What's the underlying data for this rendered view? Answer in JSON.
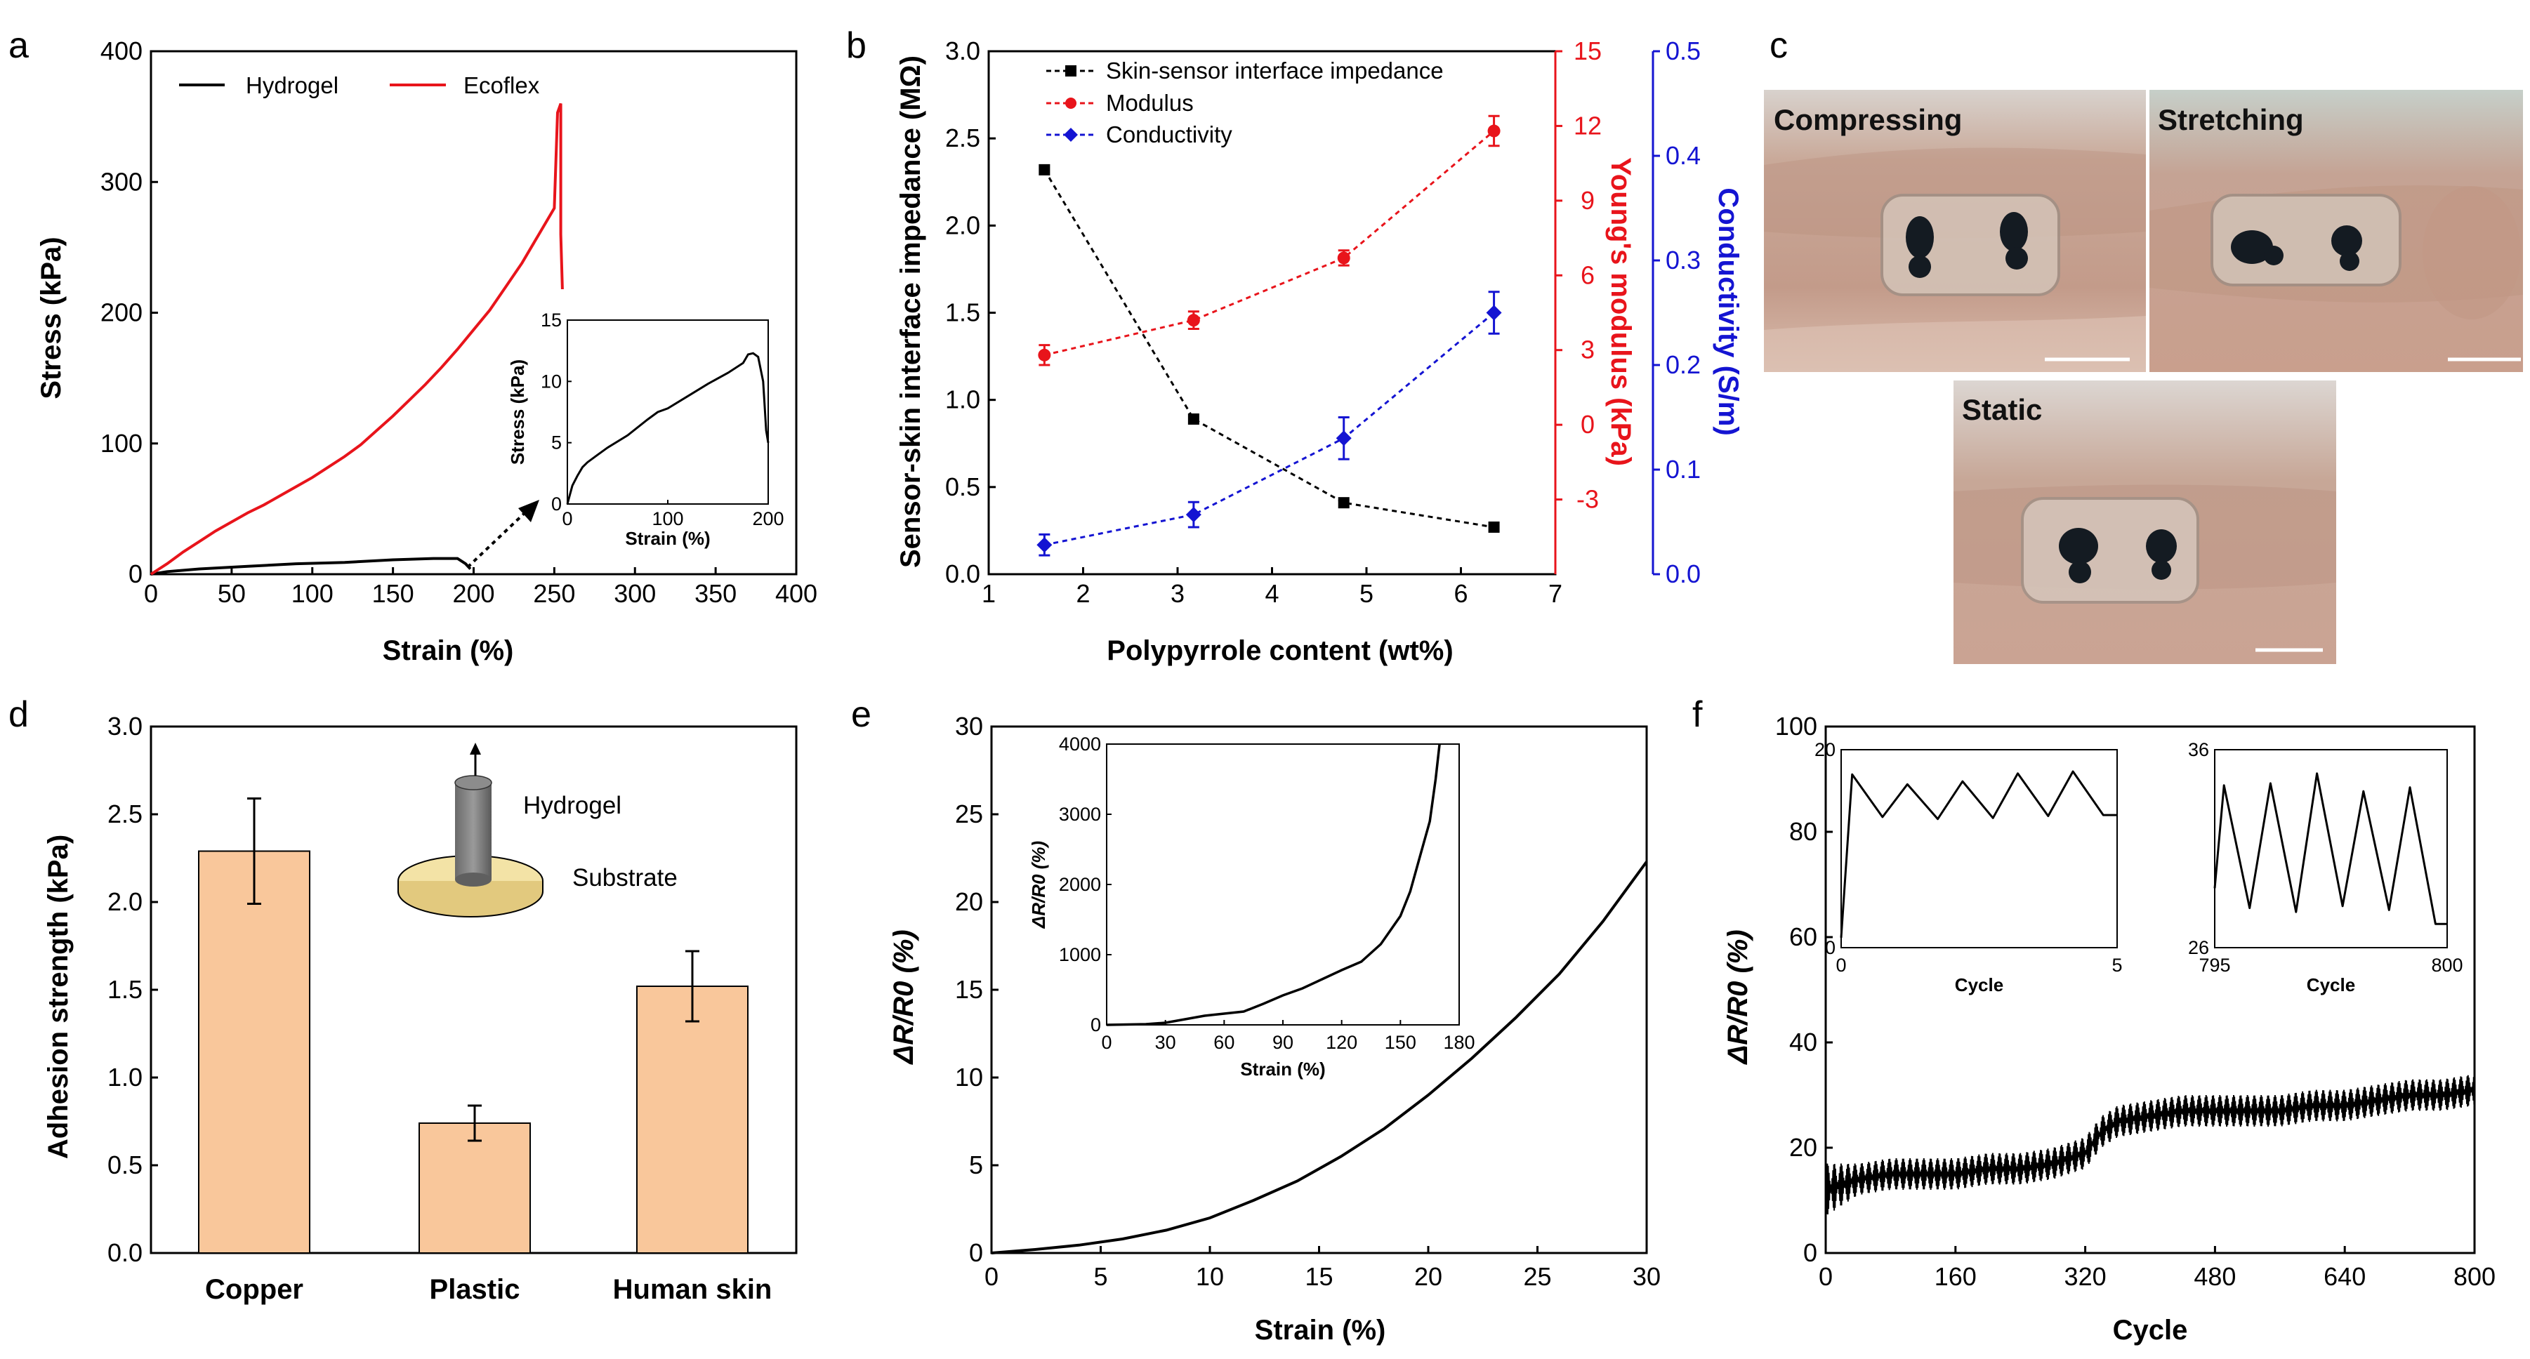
{
  "chart_data": [
    {
      "panel": "a",
      "type": "line",
      "xlabel": "Strain (%)",
      "ylabel": "Stress (kPa)",
      "xlim": [
        0,
        400
      ],
      "ylim": [
        0,
        400
      ],
      "xticks": [
        "0",
        "50",
        "100",
        "150",
        "200",
        "250",
        "300",
        "350",
        "400"
      ],
      "yticks": [
        "0",
        "100",
        "200",
        "300",
        "400"
      ],
      "legend": [
        "Hydrogel",
        "Ecoflex"
      ],
      "series": [
        {
          "name": "Hydrogel",
          "color": "#000000",
          "x": [
            0,
            10,
            30,
            60,
            90,
            120,
            150,
            175,
            190,
            195,
            198
          ],
          "y": [
            0,
            2,
            4,
            6,
            8,
            9,
            11,
            12,
            12,
            8,
            4
          ]
        },
        {
          "name": "Ecoflex",
          "color": "#e8141b",
          "x": [
            0,
            10,
            20,
            30,
            40,
            50,
            60,
            70,
            80,
            90,
            100,
            110,
            120,
            130,
            140,
            150,
            160,
            170,
            180,
            190,
            200,
            210,
            220,
            230,
            240,
            250,
            252,
            254,
            254,
            255
          ],
          "y": [
            0,
            8,
            17,
            25,
            33,
            40,
            47,
            53,
            60,
            67,
            74,
            82,
            90,
            99,
            110,
            121,
            133,
            145,
            158,
            172,
            187,
            202,
            220,
            238,
            259,
            280,
            353,
            360,
            260,
            218
          ]
        }
      ],
      "inset": {
        "xlabel": "Strain (%)",
        "ylabel": "Stress (kPa)",
        "xlim": [
          0,
          200
        ],
        "ylim": [
          0,
          15
        ],
        "xticks": [
          "0",
          "100",
          "200"
        ],
        "yticks": [
          "0",
          "5",
          "10",
          "15"
        ],
        "x": [
          0,
          5,
          10,
          15,
          20,
          30,
          40,
          60,
          80,
          90,
          100,
          120,
          140,
          160,
          175,
          180,
          185,
          190,
          195,
          198,
          200
        ],
        "y": [
          0,
          1.5,
          2.3,
          3.0,
          3.4,
          4.0,
          4.6,
          5.6,
          6.9,
          7.5,
          7.8,
          8.8,
          9.8,
          10.7,
          11.5,
          12.2,
          12.3,
          12.0,
          10.0,
          6.0,
          5.0
        ]
      },
      "annotation": "→ inset of Hydrogel curve"
    },
    {
      "panel": "b",
      "type": "line",
      "xlabel": "Polypyrrole content (wt%)",
      "ylabel": "Sensor-skin interface impedance (MΩ)",
      "y2label": "Young's modulus (kPa)",
      "y3label": "Conductivity (S/m)",
      "xlim": [
        1,
        7
      ],
      "ylim": [
        0,
        3.0
      ],
      "y2lim": [
        -6,
        15
      ],
      "y3lim": [
        0,
        0.5
      ],
      "xticks": [
        "1",
        "2",
        "3",
        "4",
        "5",
        "6",
        "7"
      ],
      "yticks": [
        "0.0",
        "0.5",
        "1.0",
        "1.5",
        "2.0",
        "2.5",
        "3.0"
      ],
      "y2ticks": [
        "-3",
        "0",
        "3",
        "6",
        "9",
        "12",
        "15"
      ],
      "y3ticks": [
        "0.0",
        "0.1",
        "0.2",
        "0.3",
        "0.4",
        "0.5"
      ],
      "series": [
        {
          "name": "Skin-sensor interface impedance",
          "color": "#000000",
          "marker": "square",
          "x": [
            1.59,
            3.17,
            4.76,
            6.35
          ],
          "y": [
            2.32,
            0.89,
            0.41,
            0.27
          ]
        },
        {
          "name": "Modulus",
          "color": "#e8141b",
          "marker": "circle",
          "x": [
            1.59,
            3.17,
            4.76,
            6.35
          ],
          "y": [
            2.8,
            4.2,
            6.7,
            11.8
          ],
          "err": [
            0.4,
            0.35,
            0.3,
            0.6
          ]
        },
        {
          "name": "Conductivity",
          "color": "#1414d2",
          "marker": "diamond",
          "x": [
            1.59,
            3.17,
            4.76,
            6.35
          ],
          "y": [
            0.028,
            0.057,
            0.13,
            0.25
          ],
          "err": [
            0.01,
            0.012,
            0.02,
            0.02
          ]
        }
      ]
    },
    {
      "panel": "d",
      "type": "bar",
      "xlabel": "",
      "ylabel": "Adhesion strength (kPa)",
      "ylim": [
        0,
        3.0
      ],
      "yticks": [
        "0.0",
        "0.5",
        "1.0",
        "1.5",
        "2.0",
        "2.5",
        "3.0"
      ],
      "categories": [
        "Copper",
        "Plastic",
        "Human skin"
      ],
      "values": [
        2.29,
        0.74,
        1.52
      ],
      "errors": [
        0.3,
        0.1,
        0.2
      ],
      "color": "#f9c79b",
      "inset_labels": [
        "Hydrogel",
        "Substrate"
      ]
    },
    {
      "panel": "e",
      "type": "line",
      "xlabel": "Strain (%)",
      "ylabel": "ΔR/R0 (%)",
      "xlim": [
        0,
        30
      ],
      "ylim": [
        0,
        30
      ],
      "xticks": [
        "0",
        "5",
        "10",
        "15",
        "20",
        "25",
        "30"
      ],
      "yticks": [
        "0",
        "5",
        "10",
        "15",
        "20",
        "25",
        "30"
      ],
      "x": [
        0,
        2,
        4,
        6,
        8,
        10,
        12,
        14,
        16,
        18,
        20,
        22,
        24,
        26,
        28,
        30
      ],
      "y": [
        0,
        0.2,
        0.45,
        0.8,
        1.3,
        2.0,
        3.0,
        4.1,
        5.5,
        7.1,
        9.0,
        11.1,
        13.4,
        15.9,
        18.9,
        22.3
      ],
      "inset": {
        "xlabel": "Strain (%)",
        "ylabel": "ΔR/R0 (%)",
        "xlim": [
          0,
          180
        ],
        "ylim": [
          0,
          4000
        ],
        "xticks": [
          "0",
          "30",
          "60",
          "90",
          "120",
          "150",
          "180"
        ],
        "yticks": [
          "0",
          "1000",
          "2000",
          "3000",
          "4000"
        ],
        "x": [
          0,
          20,
          30,
          40,
          50,
          60,
          70,
          80,
          90,
          100,
          110,
          120,
          130,
          140,
          150,
          155,
          160,
          165,
          168,
          170
        ],
        "y": [
          0,
          10,
          30,
          80,
          130,
          160,
          190,
          300,
          420,
          520,
          650,
          780,
          900,
          1150,
          1550,
          1900,
          2400,
          2900,
          3500,
          4000
        ]
      }
    },
    {
      "panel": "f",
      "type": "line",
      "xlabel": "Cycle",
      "ylabel": "ΔR/R0 (%)",
      "xlim": [
        0,
        800
      ],
      "ylim": [
        0,
        100
      ],
      "xticks": [
        "0",
        "160",
        "320",
        "480",
        "640",
        "800"
      ],
      "yticks": [
        "0",
        "20",
        "40",
        "60",
        "80",
        "100"
      ],
      "x": [
        0,
        20,
        40,
        80,
        120,
        160,
        200,
        240,
        280,
        320,
        340,
        360,
        400,
        440,
        480,
        520,
        560,
        600,
        640,
        680,
        720,
        760,
        800
      ],
      "y": [
        12,
        13,
        14,
        15,
        15,
        15,
        16,
        16,
        17,
        19,
        23,
        25,
        26,
        27,
        27,
        27,
        27,
        28,
        28,
        29,
        30,
        30,
        31
      ],
      "noise": [
        5,
        4,
        3,
        3,
        3,
        3,
        3,
        3,
        3,
        3,
        3,
        3,
        3,
        3,
        3,
        3,
        3,
        3,
        3,
        3,
        3,
        3,
        3
      ],
      "insets": [
        {
          "xlim": [
            0,
            5
          ],
          "ylim": [
            0,
            20
          ],
          "xticks": [
            "0",
            "5"
          ],
          "yticks": [
            "0",
            "20"
          ],
          "xlabel": "Cycle",
          "peaks": [
            17.5,
            16.5,
            16.8,
            17.6,
            17.8
          ],
          "troughs": [
            13.2,
            13.0,
            13.1,
            13.3,
            13.4
          ]
        },
        {
          "xlim": [
            795,
            800
          ],
          "ylim": [
            26,
            36
          ],
          "xticks": [
            "795",
            "800"
          ],
          "yticks": [
            "26",
            "36"
          ],
          "xlabel": "Cycle",
          "peaks": [
            34.2,
            34.3,
            34.8,
            33.9,
            34.1
          ],
          "troughs": [
            28.0,
            27.8,
            28.1,
            27.9,
            27.2
          ]
        }
      ]
    }
  ],
  "photos": {
    "panel": "c",
    "labels": [
      "Compressing",
      "Stretching",
      "Static"
    ]
  },
  "panel_letters": [
    "a",
    "b",
    "c",
    "d",
    "e",
    "f"
  ]
}
